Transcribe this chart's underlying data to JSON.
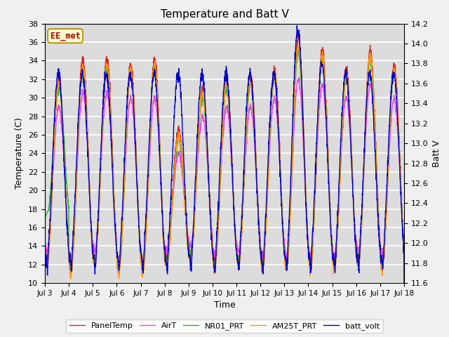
{
  "title": "Temperature and Batt V",
  "xlabel": "Time",
  "ylabel_left": "Temperature (C)",
  "ylabel_right": "Batt V",
  "xlim": [
    0,
    15
  ],
  "ylim_left": [
    10,
    38
  ],
  "ylim_right": [
    11.6,
    14.2
  ],
  "xtick_labels": [
    "Jul 3",
    "Jul 4",
    "Jul 5",
    "Jul 6",
    "Jul 7",
    "Jul 8",
    "Jul 9",
    "Jul 10",
    "Jul 11",
    "Jul 12",
    "Jul 13",
    "Jul 14",
    "Jul 15",
    "Jul 16",
    "Jul 17",
    "Jul 18"
  ],
  "ytick_left": [
    10,
    12,
    14,
    16,
    18,
    20,
    22,
    24,
    26,
    28,
    30,
    32,
    34,
    36,
    38
  ],
  "ytick_right": [
    11.6,
    11.8,
    12.0,
    12.2,
    12.4,
    12.6,
    12.8,
    13.0,
    13.2,
    13.4,
    13.6,
    13.8,
    14.0,
    14.2
  ],
  "watermark_text": "EE_met",
  "legend_labels": [
    "PanelTemp",
    "AirT",
    "NR01_PRT",
    "AM25T_PRT",
    "batt_volt"
  ],
  "legend_colors": [
    "#dd2222",
    "#ee44ee",
    "#22bb22",
    "#ff9900",
    "#0000cc"
  ],
  "figure_bg": "#f0f0f0",
  "plot_bg": "#dcdcdc",
  "grid_color": "#ffffff",
  "watermark_bg": "#ffffcc",
  "watermark_edge": "#aa8800",
  "watermark_text_color": "#aa0000"
}
